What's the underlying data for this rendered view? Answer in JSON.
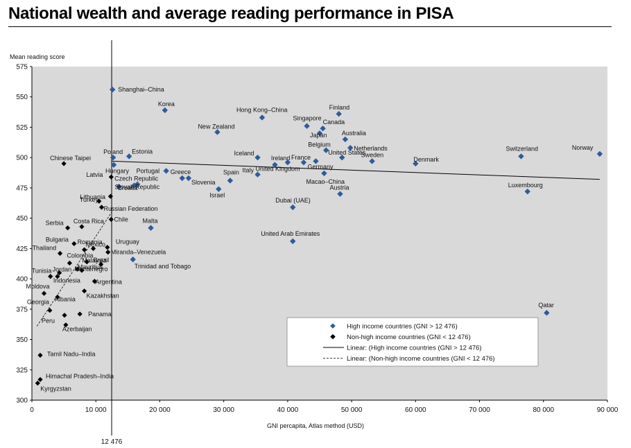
{
  "chart_data": {
    "type": "scatter",
    "title": "National wealth and average reading performance in PISA",
    "xlabel": "GNI percapita, Atlas method (USD)",
    "ylabel": "Mean reading score",
    "xlim": [
      0,
      90000
    ],
    "ylim": [
      300,
      575
    ],
    "xticks": [
      0,
      10000,
      20000,
      30000,
      40000,
      50000,
      60000,
      70000,
      80000,
      90000
    ],
    "xtick_labels": [
      "0",
      "10 000",
      "20 000",
      "30 000",
      "40 000",
      "50 000",
      "60 000",
      "70 000",
      "80 000",
      "90 000"
    ],
    "yticks": [
      300,
      325,
      350,
      375,
      400,
      425,
      450,
      475,
      500,
      525,
      550,
      575
    ],
    "grid": false,
    "threshold": {
      "x": 12476,
      "label": "12 476"
    },
    "colors": {
      "high": "#2e5b9a",
      "low": "#000000",
      "plot_bg": "#d9d9d9"
    },
    "legend": {
      "placement": "bottom-right",
      "entries": [
        "High income countries (GNI > 12 476)",
        "Non-high income countries (GNI < 12 476)",
        "Linear: (High income countries (GNI > 12 476)",
        "Linear: (Non-high income countries (GNI < 12 476)"
      ]
    },
    "series": [
      {
        "name": "High income countries (GNI > 12 476)",
        "marker": "diamond",
        "points": [
          {
            "label": "Shanghai–China",
            "x": 12600,
            "y": 556
          },
          {
            "label": "Korea",
            "x": 20800,
            "y": 539
          },
          {
            "label": "Hong Kong–China",
            "x": 36000,
            "y": 533
          },
          {
            "label": "Finland",
            "x": 48000,
            "y": 536
          },
          {
            "label": "Singapore",
            "x": 43000,
            "y": 526
          },
          {
            "label": "Canada",
            "x": 45500,
            "y": 524
          },
          {
            "label": "New Zealand",
            "x": 29000,
            "y": 521
          },
          {
            "label": "Japan",
            "x": 45000,
            "y": 520
          },
          {
            "label": "Australia",
            "x": 49000,
            "y": 515
          },
          {
            "label": "Netherlands",
            "x": 49800,
            "y": 508
          },
          {
            "label": "Belgium",
            "x": 46000,
            "y": 506
          },
          {
            "label": "Norway",
            "x": 88800,
            "y": 503
          },
          {
            "label": "Estonia",
            "x": 15200,
            "y": 501
          },
          {
            "label": "Switzerland",
            "x": 76500,
            "y": 501
          },
          {
            "label": "Poland",
            "x": 12700,
            "y": 500
          },
          {
            "label": "Iceland",
            "x": 35300,
            "y": 500
          },
          {
            "label": "United States",
            "x": 48500,
            "y": 500
          },
          {
            "label": "Sweden",
            "x": 53200,
            "y": 497
          },
          {
            "label": "Germany",
            "x": 44400,
            "y": 497
          },
          {
            "label": "Ireland",
            "x": 40000,
            "y": 496
          },
          {
            "label": "France",
            "x": 42500,
            "y": 496
          },
          {
            "label": "Denmark",
            "x": 60000,
            "y": 495
          },
          {
            "label": "United Kingdom",
            "x": 38000,
            "y": 494
          },
          {
            "label": "Hungary",
            "x": 12800,
            "y": 494
          },
          {
            "label": "Portugal",
            "x": 21000,
            "y": 489
          },
          {
            "label": "Macao–China",
            "x": 45700,
            "y": 487
          },
          {
            "label": "Italy",
            "x": 35300,
            "y": 486
          },
          {
            "label": "Greece",
            "x": 23500,
            "y": 483
          },
          {
            "label": "Slovenia",
            "x": 24500,
            "y": 483
          },
          {
            "label": "Spain",
            "x": 31000,
            "y": 481
          },
          {
            "label": "Czech Republic",
            "x": 16500,
            "y": 478
          },
          {
            "label": "Slovak Republic",
            "x": 16000,
            "y": 477
          },
          {
            "label": "Croatia",
            "x": 13600,
            "y": 476
          },
          {
            "label": "Israel",
            "x": 29200,
            "y": 474
          },
          {
            "label": "Luxembourg",
            "x": 77500,
            "y": 472
          },
          {
            "label": "Austria",
            "x": 48200,
            "y": 470
          },
          {
            "label": "Dubai (UAE)",
            "x": 40800,
            "y": 459
          },
          {
            "label": "Malta",
            "x": 18600,
            "y": 442
          },
          {
            "label": "United Arab Emirates",
            "x": 40800,
            "y": 431
          },
          {
            "label": "Trinidad and Tobago",
            "x": 15800,
            "y": 416
          },
          {
            "label": "Qatar",
            "x": 80500,
            "y": 372
          }
        ]
      },
      {
        "name": "Non-high income countries (GNI < 12 476)",
        "marker": "diamond",
        "points": [
          {
            "label": "Chinese Taipei",
            "x": 5000,
            "y": 495
          },
          {
            "label": "Latvia",
            "x": 12400,
            "y": 484
          },
          {
            "label": "Lithuania",
            "x": 12300,
            "y": 468
          },
          {
            "label": "Turkey",
            "x": 10500,
            "y": 464
          },
          {
            "label": "Russian Federation",
            "x": 10900,
            "y": 459
          },
          {
            "label": "Chile",
            "x": 12400,
            "y": 449
          },
          {
            "label": "Serbia",
            "x": 5600,
            "y": 442
          },
          {
            "label": "Costa Rica",
            "x": 7800,
            "y": 443
          },
          {
            "label": "Bulgaria",
            "x": 6600,
            "y": 429
          },
          {
            "label": "Romania",
            "x": 8200,
            "y": 424
          },
          {
            "label": "Mexico",
            "x": 9600,
            "y": 425
          },
          {
            "label": "Uruguay",
            "x": 11800,
            "y": 426
          },
          {
            "label": "Thailand",
            "x": 4400,
            "y": 421
          },
          {
            "label": "Miranda–Venezuela",
            "x": 11900,
            "y": 422
          },
          {
            "label": "Malaysia",
            "x": 8600,
            "y": 414
          },
          {
            "label": "Colombia",
            "x": 5900,
            "y": 413
          },
          {
            "label": "Brazil",
            "x": 10800,
            "y": 412
          },
          {
            "label": "Mauritius",
            "x": 7800,
            "y": 407
          },
          {
            "label": "Montenegro",
            "x": 7100,
            "y": 408
          },
          {
            "label": "Jordan",
            "x": 4300,
            "y": 405
          },
          {
            "label": "Tunisia",
            "x": 2900,
            "y": 402
          },
          {
            "label": "Indonesia",
            "x": 4000,
            "y": 402
          },
          {
            "label": "Argentina",
            "x": 9800,
            "y": 398
          },
          {
            "label": "Kazakhstan",
            "x": 8200,
            "y": 390
          },
          {
            "label": "Moldova",
            "x": 1900,
            "y": 388
          },
          {
            "label": "Albania",
            "x": 4000,
            "y": 385
          },
          {
            "label": "Georgia",
            "x": 2800,
            "y": 374
          },
          {
            "label": "Panama",
            "x": 7500,
            "y": 371
          },
          {
            "label": "Peru",
            "x": 5100,
            "y": 370
          },
          {
            "label": "Azerbaijan",
            "x": 5300,
            "y": 362
          },
          {
            "label": "Tamil Nadu–India",
            "x": 1300,
            "y": 337
          },
          {
            "label": "Himachal Pradesh–India",
            "x": 1300,
            "y": 317
          },
          {
            "label": "Kyrgyzstan",
            "x": 900,
            "y": 314
          }
        ]
      }
    ],
    "trendlines": [
      {
        "name": "Linear: (High income countries (GNI > 12 476)",
        "style": "solid",
        "x": [
          12476,
          88800
        ],
        "y": [
          497,
          482
        ]
      },
      {
        "name": "Linear: (Non-high income countries (GNI < 12 476)",
        "style": "dashed",
        "x": [
          800,
          12476
        ],
        "y": [
          361,
          455
        ]
      }
    ]
  }
}
